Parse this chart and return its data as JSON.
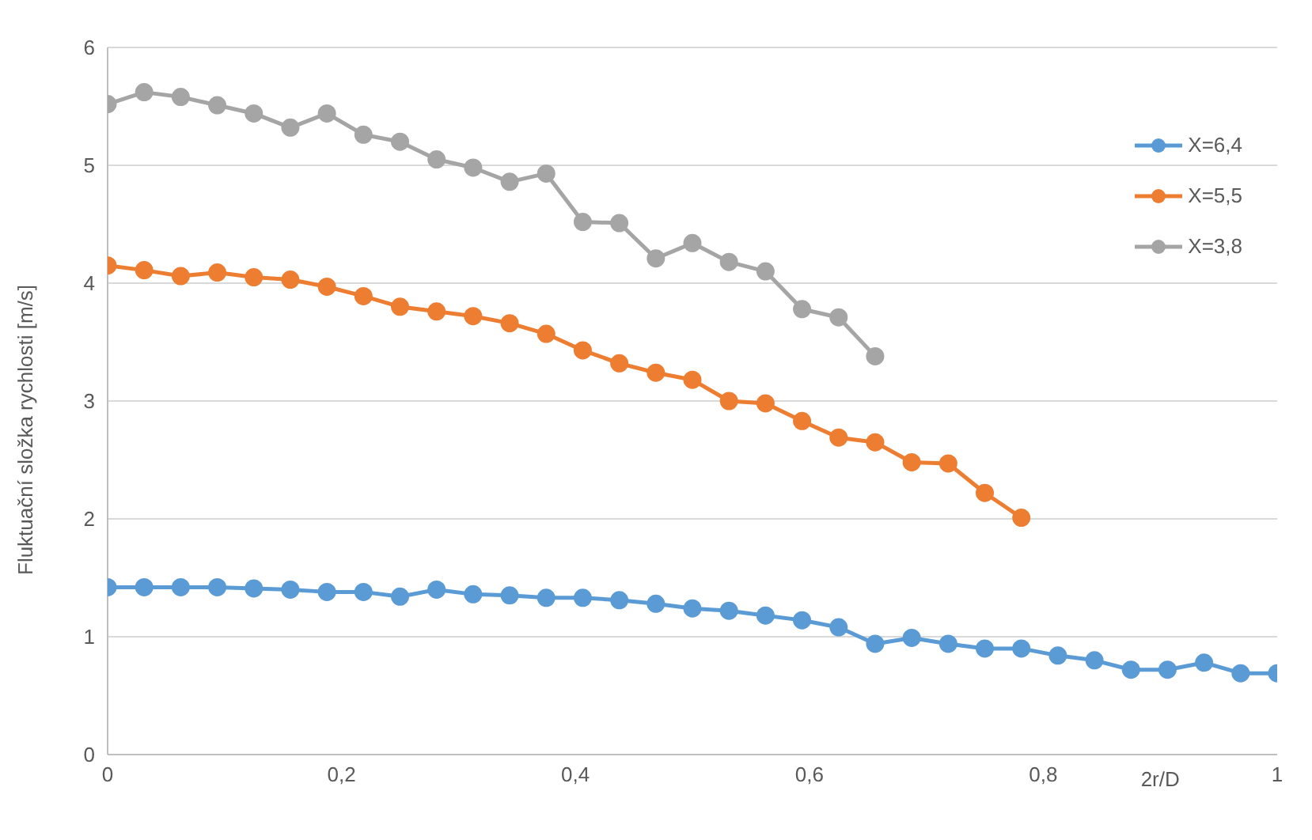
{
  "chart_data": {
    "type": "line",
    "xlabel": "2r/D",
    "ylabel": "Fluktuační složka rychlosti [m/s]",
    "xlim": [
      0,
      1
    ],
    "xticks": [
      0,
      {
        "value": 0.2,
        "label": "0,2"
      },
      {
        "value": 0.4,
        "label": "0,4"
      },
      {
        "value": 0.6,
        "label": "0,6"
      },
      {
        "value": 0.8,
        "label": "0,8"
      },
      1
    ],
    "ylim": [
      0,
      6
    ],
    "yticks": [
      0,
      1,
      2,
      3,
      4,
      5,
      6
    ],
    "grid": "y",
    "legend": "top right",
    "marker": "circle",
    "line_style": "solid",
    "series": [
      {
        "name": "X=6,4",
        "color": "#5b9bd5",
        "x": [
          0,
          0.03125,
          0.0625,
          0.09375,
          0.125,
          0.15625,
          0.1875,
          0.21875,
          0.25,
          0.28125,
          0.3125,
          0.34375,
          0.375,
          0.40625,
          0.4375,
          0.46875,
          0.5,
          0.53125,
          0.5625,
          0.59375,
          0.625,
          0.65625,
          0.6875,
          0.71875,
          0.75,
          0.78125,
          0.8125,
          0.84375,
          0.875,
          0.90625,
          0.9375,
          0.96875,
          1
        ],
        "values": [
          1.42,
          1.42,
          1.42,
          1.42,
          1.41,
          1.4,
          1.38,
          1.38,
          1.34,
          1.4,
          1.36,
          1.35,
          1.33,
          1.33,
          1.31,
          1.28,
          1.24,
          1.22,
          1.18,
          1.14,
          1.08,
          0.94,
          0.99,
          0.94,
          0.9,
          0.9,
          0.84,
          0.8,
          0.72,
          0.72,
          0.78,
          0.69,
          0.69
        ]
      },
      {
        "name": "X=5,5",
        "color": "#ed7d31",
        "x": [
          0,
          0.03125,
          0.0625,
          0.09375,
          0.125,
          0.15625,
          0.1875,
          0.21875,
          0.25,
          0.28125,
          0.3125,
          0.34375,
          0.375,
          0.40625,
          0.4375,
          0.46875,
          0.5,
          0.53125,
          0.5625,
          0.59375,
          0.625,
          0.65625,
          0.6875,
          0.71875,
          0.75,
          0.78125
        ],
        "values": [
          4.15,
          4.11,
          4.06,
          4.09,
          4.05,
          4.03,
          3.97,
          3.89,
          3.8,
          3.76,
          3.72,
          3.66,
          3.57,
          3.43,
          3.32,
          3.24,
          3.18,
          3.0,
          2.98,
          2.83,
          2.69,
          2.65,
          2.48,
          2.47,
          2.22,
          2.01
        ]
      },
      {
        "name": "X=3,8",
        "color": "#a5a5a5",
        "x": [
          0,
          0.03125,
          0.0625,
          0.09375,
          0.125,
          0.15625,
          0.1875,
          0.21875,
          0.25,
          0.28125,
          0.3125,
          0.34375,
          0.375,
          0.40625,
          0.4375,
          0.46875,
          0.5,
          0.53125,
          0.5625,
          0.59375,
          0.625,
          0.65625
        ],
        "values": [
          5.52,
          5.62,
          5.58,
          5.51,
          5.44,
          5.32,
          5.44,
          5.26,
          5.2,
          5.05,
          4.98,
          4.86,
          4.93,
          4.52,
          4.51,
          4.21,
          4.34,
          4.18,
          4.1,
          3.78,
          3.71,
          3.38
        ]
      }
    ]
  }
}
